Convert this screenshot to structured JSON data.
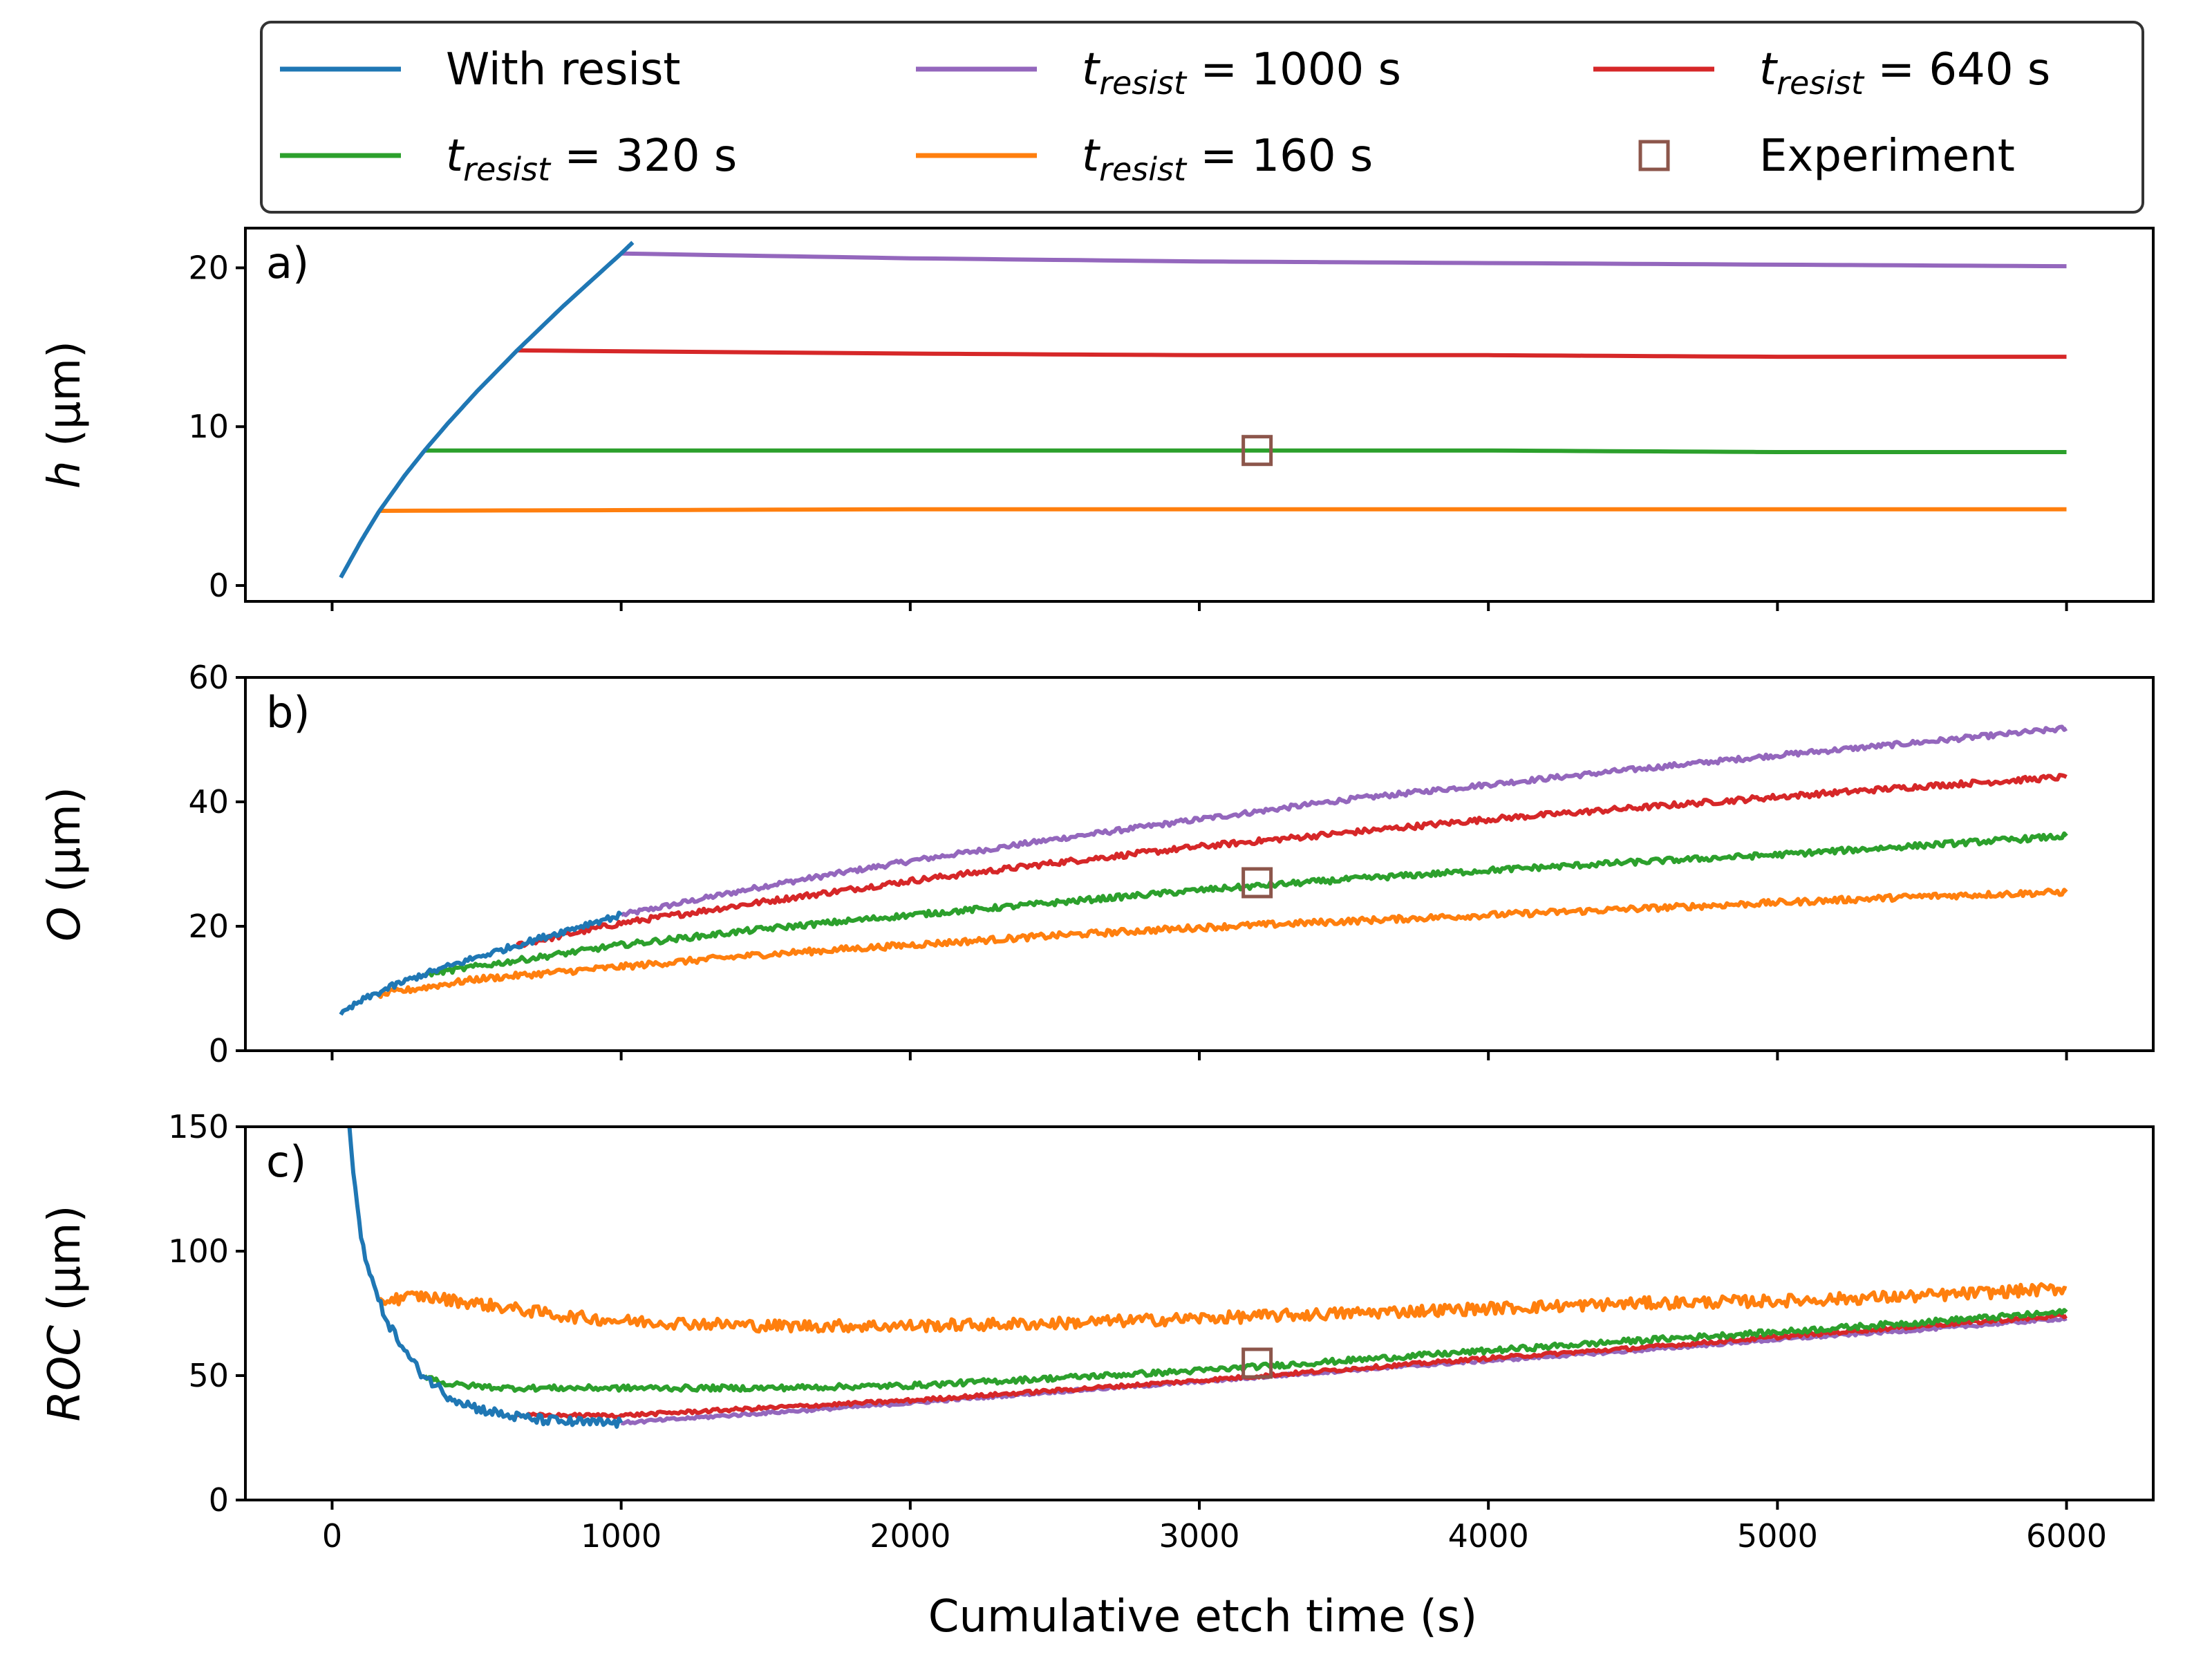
{
  "chart_data": {
    "type": "line",
    "xlabel": "Cumulative etch time (s)",
    "xlim": [
      -300,
      6300
    ],
    "xticks": [
      0,
      1000,
      2000,
      3000,
      4000,
      5000,
      6000
    ],
    "colors": {
      "with_resist": "#1f77b4",
      "t1000": "#9467bd",
      "t640": "#d62728",
      "t320": "#2ca02c",
      "t160": "#ff7f0e",
      "experiment": "#8c564b"
    },
    "legend": {
      "placement": "top, above panels, 3 columns",
      "items": [
        {
          "key": "with_resist",
          "kind": "line",
          "text": "With resist"
        },
        {
          "key": "t1000",
          "kind": "line",
          "prefix": "t",
          "sub": "resist",
          "suffix": " = 1000 s"
        },
        {
          "key": "t640",
          "kind": "line",
          "prefix": "t",
          "sub": "resist",
          "suffix": " = 640 s"
        },
        {
          "key": "t320",
          "kind": "line",
          "prefix": "t",
          "sub": "resist",
          "suffix": " = 320 s"
        },
        {
          "key": "t160",
          "kind": "line",
          "prefix": "t",
          "sub": "resist",
          "suffix": " = 160 s"
        },
        {
          "key": "experiment",
          "kind": "marker",
          "text": "Experiment"
        }
      ]
    },
    "panels": [
      {
        "label": "a)",
        "ylabel_italic": "h",
        "ylabel_unit": " (µm)",
        "ylim": [
          -1,
          22.5
        ],
        "yticks": [
          0,
          10,
          20
        ],
        "series": [
          {
            "key": "with_resist",
            "x": [
              30,
              100,
              160,
              250,
              320,
              400,
              500,
              640,
              800,
              1000,
              1040
            ],
            "y": [
              0.5,
              2.8,
              4.6,
              6.9,
              8.5,
              10.2,
              12.2,
              14.8,
              17.6,
              20.9,
              21.6
            ]
          },
          {
            "key": "t1000",
            "x": [
              1000,
              2000,
              3000,
              4000,
              5000,
              6000
            ],
            "y": [
              20.9,
              20.6,
              20.4,
              20.3,
              20.2,
              20.1
            ]
          },
          {
            "key": "t640",
            "x": [
              640,
              2000,
              3000,
              4000,
              5000,
              6000
            ],
            "y": [
              14.8,
              14.6,
              14.5,
              14.5,
              14.4,
              14.4
            ]
          },
          {
            "key": "t320",
            "x": [
              320,
              2000,
              3000,
              4000,
              5000,
              6000
            ],
            "y": [
              8.5,
              8.5,
              8.5,
              8.5,
              8.4,
              8.4
            ]
          },
          {
            "key": "t160",
            "x": [
              160,
              2000,
              3000,
              4000,
              5000,
              6000
            ],
            "y": [
              4.7,
              4.8,
              4.8,
              4.8,
              4.8,
              4.8
            ]
          }
        ],
        "experiment": {
          "x": 3200,
          "y": 8.5
        }
      },
      {
        "label": "b)",
        "ylabel_italic": "O",
        "ylabel_unit": " (µm)",
        "ylim": [
          0,
          60
        ],
        "yticks": [
          0,
          20,
          40,
          60
        ],
        "series": [
          {
            "key": "with_resist",
            "x": [
              30,
              100,
              200,
              300,
              400,
              500,
              600,
              700,
              800,
              900,
              1000
            ],
            "y": [
              5.8,
              8.0,
              10.2,
              12.0,
              13.5,
              15.0,
              16.4,
              17.8,
              19.2,
              20.6,
              21.8
            ]
          },
          {
            "key": "t1000",
            "x": [
              1000,
              1500,
              2000,
              2500,
              3000,
              3500,
              4000,
              4500,
              5000,
              5500,
              6000
            ],
            "y": [
              21.8,
              26.5,
              30.5,
              34.0,
              37.2,
              40.3,
              42.8,
              45.2,
              47.5,
              49.6,
              51.8
            ]
          },
          {
            "key": "t640",
            "x": [
              640,
              1000,
              1500,
              2000,
              2500,
              3000,
              3500,
              4000,
              4500,
              5000,
              5500,
              6000
            ],
            "y": [
              17.0,
              20.5,
              24.0,
              27.3,
              30.2,
              32.8,
              35.0,
              37.2,
              39.0,
              40.8,
              42.5,
              44.0
            ]
          },
          {
            "key": "t320",
            "x": [
              320,
              1000,
              1500,
              2000,
              2500,
              3000,
              3500,
              4000,
              4500,
              5000,
              5500,
              6000
            ],
            "y": [
              12.3,
              17.0,
              19.6,
              21.8,
              23.8,
              25.8,
              27.5,
              29.0,
              30.3,
              31.5,
              33.0,
              34.5
            ]
          },
          {
            "key": "t160",
            "x": [
              160,
              500,
              1000,
              1500,
              2000,
              2500,
              3000,
              3500,
              4000,
              4500,
              5000,
              5500,
              6000
            ],
            "y": [
              9.0,
              11.5,
              13.5,
              15.5,
              17.0,
              18.5,
              19.8,
              20.8,
              21.8,
              22.8,
              23.8,
              24.8,
              25.5
            ]
          }
        ],
        "experiment": {
          "x": 3200,
          "y": 27
        }
      },
      {
        "label": "c)",
        "ylabel_italic": "ROC",
        "ylabel_unit": " (µm)",
        "ylim": [
          0,
          150
        ],
        "yticks": [
          0,
          50,
          100,
          150
        ],
        "series": [
          {
            "key": "with_resist",
            "x": [
              60,
              80,
              100,
              130,
              160,
              200,
              250,
              300,
              400,
              500,
              600,
              700,
              800,
              900,
              1000
            ],
            "y": [
              150,
              125,
              105,
              92,
              80,
              70,
              60,
              52,
              42,
              37,
              34,
              32.5,
              31.5,
              31,
              31
            ]
          },
          {
            "key": "t1000",
            "x": [
              1000,
              1500,
              2000,
              2500,
              3000,
              3500,
              4000,
              4500,
              5000,
              5500,
              6000
            ],
            "y": [
              31,
              35,
              39,
              43.5,
              47.5,
              52,
              56,
              60,
              64.5,
              68.5,
              73
            ]
          },
          {
            "key": "t640",
            "x": [
              640,
              1000,
              1500,
              2000,
              2500,
              3000,
              3500,
              4000,
              4500,
              5000,
              5500,
              6000
            ],
            "y": [
              34,
              34,
              37,
              40,
              44,
              48,
              52.5,
              57,
              61,
              65.5,
              70,
              74
            ]
          },
          {
            "key": "t320",
            "x": [
              320,
              400,
              600,
              1000,
              1500,
              2000,
              2500,
              3000,
              3500,
              4000,
              4500,
              5000,
              5500,
              6000
            ],
            "y": [
              50,
              46.5,
              45,
              45,
              45,
              46,
              49,
              52,
              56,
              60,
              64,
              67.5,
              71.5,
              75.5
            ]
          },
          {
            "key": "t160",
            "x": [
              160,
              300,
              500,
              800,
              1000,
              1500,
              2000,
              2500,
              3000,
              3500,
              4000,
              4500,
              5000,
              5500,
              6000
            ],
            "y": [
              80,
              82,
              79,
              74,
              72,
              70,
              70,
              71,
              73,
              75,
              77,
              79,
              80,
              82,
              85
            ]
          }
        ],
        "experiment": {
          "x": 3200,
          "y": 55
        }
      }
    ]
  }
}
